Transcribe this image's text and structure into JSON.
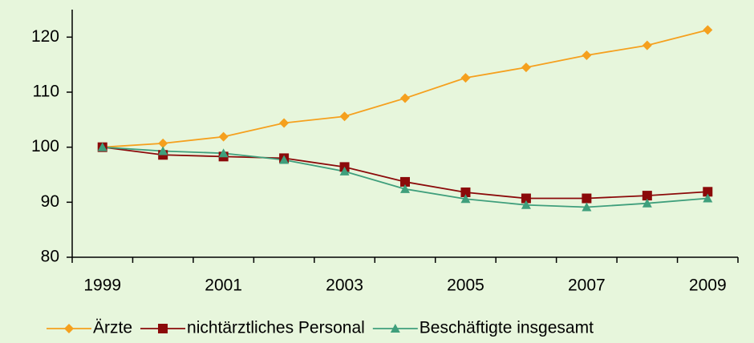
{
  "chart_data": {
    "type": "line",
    "categories": [
      1999,
      null,
      2001,
      null,
      2003,
      null,
      2005,
      null,
      2007,
      null,
      2009
    ],
    "series": [
      {
        "name": "Ärzte",
        "color": "#f5a01e",
        "marker": "diamond",
        "values": [
          100,
          100.7,
          101.9,
          104.4,
          105.6,
          108.9,
          112.6,
          114.5,
          116.7,
          118.5,
          121.3
        ]
      },
      {
        "name": "nichtärztliches Personal",
        "color": "#8b0a0a",
        "marker": "square",
        "values": [
          100,
          98.6,
          98.3,
          98,
          96.4,
          93.7,
          91.8,
          90.7,
          90.7,
          91.2,
          91.9
        ]
      },
      {
        "name": "Beschäftigte insgesamt",
        "color": "#3f9f7c",
        "marker": "triangle",
        "values": [
          100,
          99.3,
          98.9,
          97.7,
          95.6,
          92.4,
          90.6,
          89.5,
          89.1,
          89.8,
          90.7
        ]
      }
    ],
    "ylim": [
      80,
      125
    ],
    "yticks": [
      80,
      90,
      100,
      110,
      120
    ],
    "legend": "bottom"
  }
}
